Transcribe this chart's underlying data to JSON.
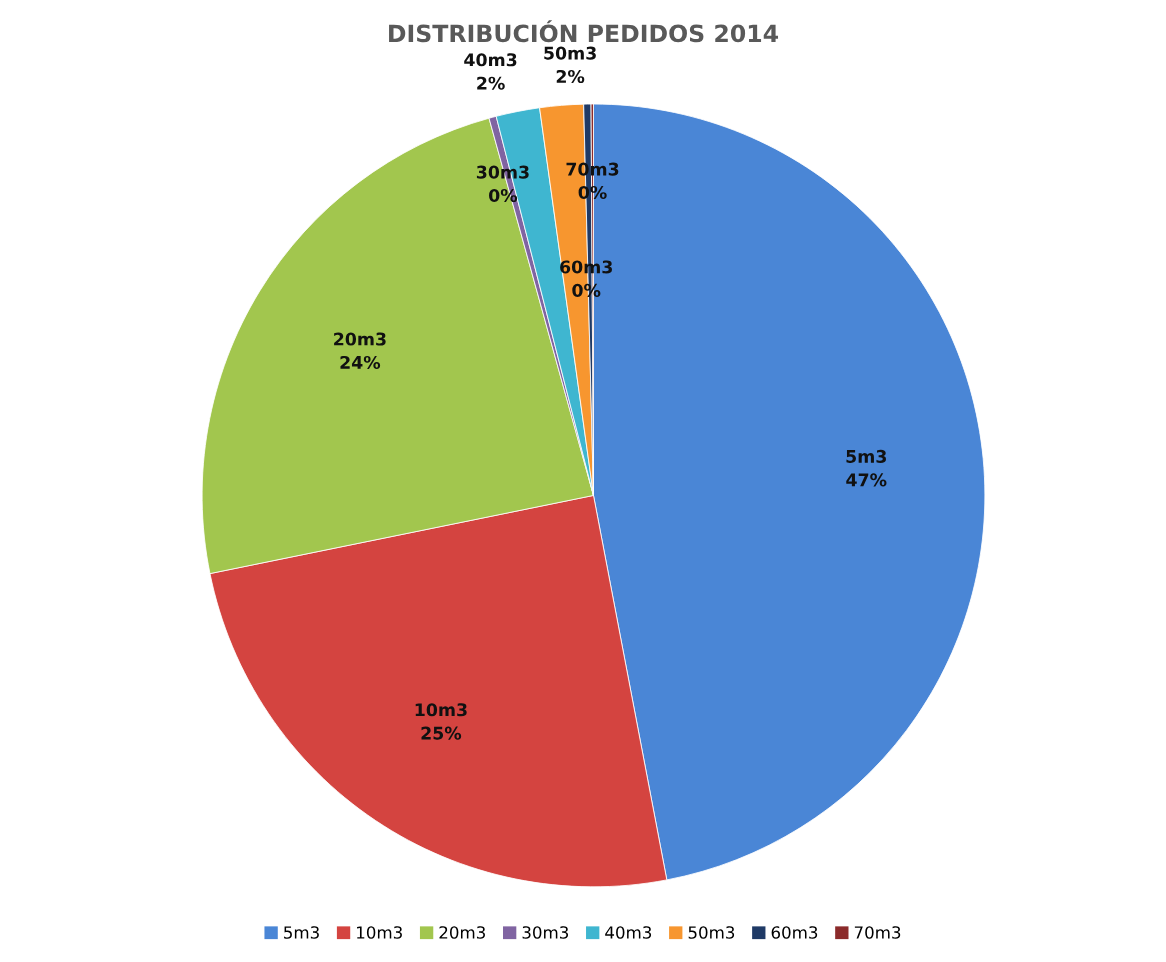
{
  "chart_data": {
    "type": "pie",
    "title": "DISTRIBUCIÓN PEDIDOS 2014",
    "categories": [
      "5m3",
      "10m3",
      "20m3",
      "30m3",
      "40m3",
      "50m3",
      "60m3",
      "70m3"
    ],
    "values": [
      47,
      24.8,
      23.9,
      0.3,
      1.8,
      1.8,
      0.3,
      0.1
    ],
    "value_labels": [
      "47%",
      "25%",
      "24%",
      "0%",
      "2%",
      "2%",
      "0%",
      "0%"
    ],
    "colors": [
      "#4a86d6",
      "#d44440",
      "#a2c64e",
      "#8064a2",
      "#3fb6d0",
      "#f7962f",
      "#1f3a66",
      "#8b2a2a"
    ],
    "legend": "bottom"
  }
}
